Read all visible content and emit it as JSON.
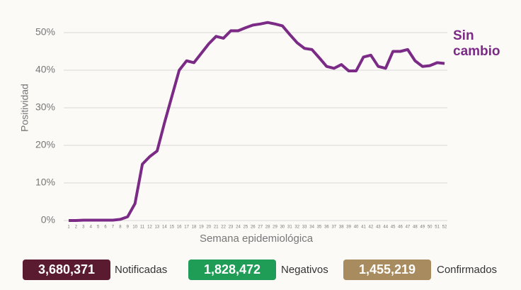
{
  "chart_data": {
    "type": "line",
    "y_label": "Positividad",
    "x_label": "Semana epidemiológica",
    "annotation": "Sin cambio",
    "categories": [
      "1",
      "2",
      "3",
      "4",
      "5",
      "6",
      "7",
      "8",
      "9",
      "10",
      "11",
      "12",
      "13",
      "14",
      "15",
      "16",
      "17",
      "18",
      "19",
      "20",
      "21",
      "22",
      "23",
      "24",
      "25",
      "26",
      "27",
      "28",
      "29",
      "30",
      "31",
      "32",
      "33",
      "34",
      "35",
      "36",
      "37",
      "38",
      "39",
      "40",
      "41",
      "42",
      "43",
      "44",
      "45",
      "46",
      "47",
      "48",
      "49",
      "50",
      "51",
      "52"
    ],
    "series": [
      {
        "color": "#7b2a86",
        "values": [
          0,
          0,
          0.1,
          0.1,
          0.1,
          0.1,
          0.1,
          0.3,
          1,
          4.5,
          15,
          17,
          18.5,
          26,
          33,
          40,
          42.5,
          42,
          44.5,
          47,
          49,
          48.5,
          50.5,
          50.5,
          51.3,
          52,
          52.3,
          52.7,
          52.3,
          51.8,
          49.5,
          47.3,
          45.8,
          45.5,
          43.3,
          41,
          40.5,
          41.5,
          39.8,
          39.8,
          43.5,
          44,
          41,
          40.5,
          45,
          45,
          45.5,
          42.5,
          41,
          41.2,
          42,
          41.8
        ]
      }
    ],
    "ylim": [
      0,
      50
    ],
    "yticks": [
      {
        "value": 0,
        "label": "0%"
      },
      {
        "value": 10,
        "label": "10%"
      },
      {
        "value": 20,
        "label": "20%"
      },
      {
        "value": 30,
        "label": "30%"
      },
      {
        "value": 40,
        "label": "40%"
      },
      {
        "value": 50,
        "label": "50%"
      }
    ],
    "grid": true
  },
  "stats": [
    {
      "value": "3,680,371",
      "label": "Notificadas",
      "color": "#5a1a30"
    },
    {
      "value": "1,828,472",
      "label": "Negativos",
      "color": "#1f9d57"
    },
    {
      "value": "1,455,219",
      "label": "Confirmados",
      "color": "#a88b5e"
    }
  ]
}
